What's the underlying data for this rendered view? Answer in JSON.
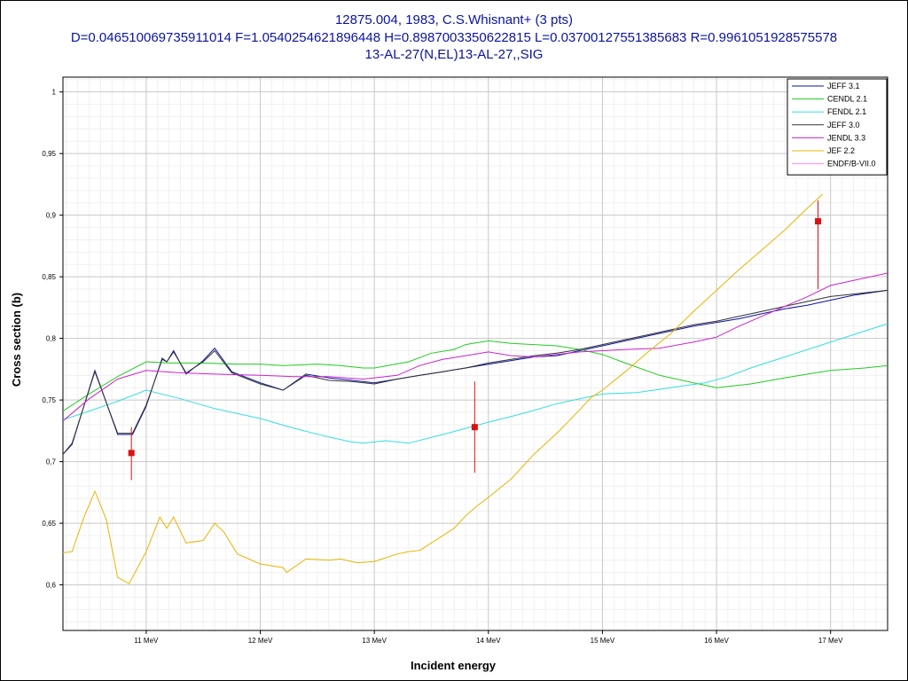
{
  "chart_data": {
    "type": "line",
    "title": [
      "12875.004, 1983, C.S.Whisnant+ (3 pts)",
      "D=0.046510069735911014 F=1.0540254621896448 H=0.8987003350622815 L=0.03700127551385683 R=0.9961051928575578",
      "13-AL-27(N,EL)13-AL-27,,SIG"
    ],
    "xlabel": "Incident energy",
    "ylabel": "Cross section (b)",
    "xlim": [
      10.27,
      17.5
    ],
    "ylim": [
      0.563,
      1.012
    ],
    "x_ticks": [
      {
        "value": 11,
        "label": "11 MeV"
      },
      {
        "value": 12,
        "label": "12 MeV"
      },
      {
        "value": 13,
        "label": "13 MeV"
      },
      {
        "value": 14,
        "label": "14 MeV"
      },
      {
        "value": 15,
        "label": "15 MeV"
      },
      {
        "value": 16,
        "label": "16 MeV"
      },
      {
        "value": 17,
        "label": "17 MeV"
      }
    ],
    "y_ticks": [
      {
        "value": 0.6,
        "label": "0,6"
      },
      {
        "value": 0.65,
        "label": "0,65"
      },
      {
        "value": 0.7,
        "label": "0,7"
      },
      {
        "value": 0.75,
        "label": "0,75"
      },
      {
        "value": 0.8,
        "label": "0,8"
      },
      {
        "value": 0.85,
        "label": "0,85"
      },
      {
        "value": 0.9,
        "label": "0,9"
      },
      {
        "value": 0.95,
        "label": "0,95"
      },
      {
        "value": 1,
        "label": "1"
      }
    ],
    "grid": true,
    "legend_position": "top-right",
    "series": [
      {
        "name": "JEFF 3.1",
        "color": "#0a14a0",
        "x": [
          10.27,
          10.35,
          10.55,
          10.75,
          10.88,
          11.0,
          11.14,
          11.18,
          11.24,
          11.35,
          11.5,
          11.6,
          11.75,
          12.0,
          12.2,
          12.4,
          12.6,
          12.8,
          13.0,
          13.2,
          13.4,
          13.6,
          13.8,
          14.0,
          14.2,
          14.4,
          14.6,
          14.8,
          15.0,
          15.2,
          15.4,
          15.6,
          15.8,
          16.0,
          16.2,
          16.4,
          16.6,
          16.8,
          17.0,
          17.2,
          17.5
        ],
        "y": [
          0.706,
          0.714,
          0.774,
          0.722,
          0.722,
          0.745,
          0.784,
          0.781,
          0.79,
          0.771,
          0.782,
          0.792,
          0.773,
          0.764,
          0.758,
          0.771,
          0.768,
          0.766,
          0.764,
          0.767,
          0.77,
          0.773,
          0.776,
          0.779,
          0.782,
          0.785,
          0.786,
          0.79,
          0.794,
          0.798,
          0.802,
          0.806,
          0.81,
          0.813,
          0.816,
          0.82,
          0.824,
          0.827,
          0.831,
          0.835,
          0.839
        ]
      },
      {
        "name": "CENDL 2.1",
        "color": "#22cc22",
        "x": [
          10.27,
          10.5,
          10.75,
          11.0,
          11.2,
          11.5,
          11.8,
          12.0,
          12.2,
          12.5,
          12.7,
          12.9,
          13.0,
          13.3,
          13.5,
          13.7,
          13.8,
          14.0,
          14.2,
          14.4,
          14.6,
          14.8,
          15.0,
          15.2,
          15.5,
          15.8,
          16.0,
          16.3,
          16.6,
          16.8,
          17.0,
          17.3,
          17.5
        ],
        "y": [
          0.741,
          0.755,
          0.769,
          0.781,
          0.78,
          0.78,
          0.779,
          0.779,
          0.778,
          0.779,
          0.778,
          0.776,
          0.776,
          0.781,
          0.788,
          0.791,
          0.795,
          0.798,
          0.796,
          0.795,
          0.794,
          0.791,
          0.787,
          0.78,
          0.77,
          0.764,
          0.76,
          0.763,
          0.768,
          0.771,
          0.774,
          0.776,
          0.778
        ]
      },
      {
        "name": "FENDL 2.1",
        "color": "#33dde0",
        "x": [
          10.27,
          10.5,
          10.75,
          11.0,
          11.3,
          11.6,
          12.0,
          12.3,
          12.6,
          12.8,
          12.9,
          13.1,
          13.3,
          13.6,
          13.8,
          14.0,
          14.3,
          14.6,
          15.0,
          15.3,
          15.6,
          15.9,
          16.1,
          16.3,
          16.6,
          16.9,
          17.2,
          17.5
        ],
        "y": [
          0.734,
          0.741,
          0.749,
          0.758,
          0.751,
          0.743,
          0.735,
          0.727,
          0.72,
          0.716,
          0.715,
          0.717,
          0.715,
          0.722,
          0.727,
          0.732,
          0.739,
          0.747,
          0.755,
          0.756,
          0.76,
          0.764,
          0.769,
          0.776,
          0.785,
          0.794,
          0.803,
          0.812
        ]
      },
      {
        "name": "JEFF 3.0",
        "color": "#333333",
        "x": [
          10.27,
          10.35,
          10.55,
          10.75,
          10.88,
          11.0,
          11.14,
          11.18,
          11.24,
          11.35,
          11.5,
          11.6,
          11.75,
          12.0,
          12.2,
          12.4,
          12.6,
          12.8,
          13.0,
          13.2,
          13.4,
          13.6,
          13.8,
          14.0,
          14.2,
          14.4,
          14.6,
          14.8,
          15.0,
          15.2,
          15.4,
          15.6,
          15.8,
          16.0,
          16.2,
          16.4,
          16.6,
          16.8,
          17.0,
          17.2,
          17.5
        ],
        "y": [
          0.706,
          0.715,
          0.773,
          0.723,
          0.723,
          0.746,
          0.783,
          0.781,
          0.789,
          0.772,
          0.781,
          0.79,
          0.772,
          0.763,
          0.758,
          0.77,
          0.766,
          0.765,
          0.763,
          0.767,
          0.77,
          0.773,
          0.776,
          0.78,
          0.783,
          0.786,
          0.788,
          0.791,
          0.795,
          0.799,
          0.803,
          0.807,
          0.811,
          0.814,
          0.818,
          0.822,
          0.826,
          0.83,
          0.834,
          0.836,
          0.839
        ]
      },
      {
        "name": "JENDL 3.3",
        "color": "#cc22cc",
        "x": [
          10.27,
          10.5,
          10.75,
          11.0,
          11.3,
          11.6,
          12.0,
          12.3,
          12.6,
          12.9,
          13.0,
          13.2,
          13.4,
          13.6,
          13.8,
          14.0,
          14.2,
          14.4,
          14.6,
          14.8,
          15.0,
          15.2,
          15.5,
          15.8,
          16.0,
          16.2,
          16.4,
          16.6,
          16.8,
          17.0,
          17.3,
          17.5
        ],
        "y": [
          0.733,
          0.751,
          0.767,
          0.774,
          0.772,
          0.771,
          0.77,
          0.769,
          0.769,
          0.767,
          0.768,
          0.77,
          0.778,
          0.783,
          0.786,
          0.789,
          0.786,
          0.785,
          0.787,
          0.789,
          0.79,
          0.791,
          0.792,
          0.797,
          0.801,
          0.81,
          0.818,
          0.826,
          0.834,
          0.843,
          0.849,
          0.853
        ]
      },
      {
        "name": "JEF 2.2",
        "color": "#e8b400",
        "x": [
          10.27,
          10.35,
          10.45,
          10.55,
          10.65,
          10.75,
          10.85,
          11.0,
          11.12,
          11.18,
          11.24,
          11.35,
          11.5,
          11.6,
          11.68,
          11.8,
          12.0,
          12.2,
          12.23,
          12.4,
          12.6,
          12.7,
          12.85,
          13.0,
          13.2,
          13.3,
          13.4,
          13.5,
          13.7,
          13.8,
          13.9,
          14.0,
          14.2,
          14.4,
          14.6,
          14.8,
          14.9,
          15.0,
          15.2,
          15.4,
          15.6,
          15.8,
          16.0,
          16.2,
          16.4,
          16.6,
          16.8,
          16.93
        ],
        "y": [
          0.626,
          0.627,
          0.654,
          0.676,
          0.653,
          0.606,
          0.601,
          0.627,
          0.655,
          0.646,
          0.655,
          0.634,
          0.636,
          0.65,
          0.643,
          0.625,
          0.617,
          0.614,
          0.61,
          0.621,
          0.62,
          0.621,
          0.618,
          0.619,
          0.625,
          0.627,
          0.628,
          0.634,
          0.646,
          0.656,
          0.664,
          0.671,
          0.686,
          0.706,
          0.723,
          0.742,
          0.752,
          0.758,
          0.773,
          0.789,
          0.804,
          0.822,
          0.839,
          0.856,
          0.872,
          0.888,
          0.906,
          0.917
        ]
      },
      {
        "name": "ENDF/B-VII.0",
        "color": "#ff88ee",
        "x": [],
        "y": []
      }
    ],
    "measurements": {
      "color": "#dd1111",
      "points": [
        {
          "x": 10.87,
          "y": 0.707,
          "err_low": 0.685,
          "err_high": 0.728
        },
        {
          "x": 13.88,
          "y": 0.728,
          "err_low": 0.691,
          "err_high": 0.765
        },
        {
          "x": 16.89,
          "y": 0.895,
          "err_low": 0.84,
          "err_high": 0.912
        }
      ]
    }
  }
}
